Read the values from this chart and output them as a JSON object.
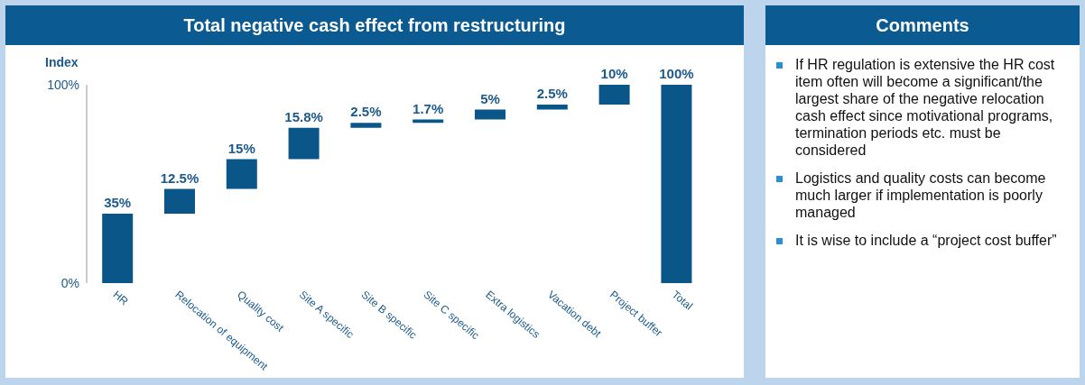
{
  "chart_data": [
    {
      "type": "bar",
      "title": "Total negative cash effect from restructuring",
      "ylabel": "Index",
      "categories": [
        "HR",
        "Relocation of equipment",
        "Quality cost",
        "Site A specific",
        "Site B specific",
        "Site C specific",
        "Extra logistics",
        "Vacation debt",
        "Project buffer",
        "Total"
      ],
      "values": [
        35,
        12.5,
        15,
        15.8,
        2.5,
        1.7,
        5,
        2.5,
        10,
        100
      ],
      "base": [
        0,
        35,
        47.5,
        62.5,
        78.3,
        80.8,
        82.5,
        87.5,
        90,
        0
      ],
      "value_labels": [
        "35%",
        "12.5%",
        "15%",
        "15.8%",
        "2.5%",
        "1.7%",
        "5%",
        "2.5%",
        "10%",
        "100%"
      ],
      "color": "#0b5689",
      "ylim": [
        0,
        100
      ],
      "yticks": [
        {
          "value": 0,
          "label": "0%"
        },
        {
          "value": 100,
          "label": "100%"
        }
      ],
      "grid": false,
      "legend": false
    },
    {
      "type": "other",
      "title": "Comments",
      "annotations": [
        "If HR regulation is extensive the HR cost item often will become a significant/the largest share of the negative relocation cash effect since motivational programs, termination periods etc. must be considered",
        "Logistics and quality costs can become much larger if implementation is poorly managed",
        "It is wise to include a “project cost buffer”"
      ]
    }
  ]
}
